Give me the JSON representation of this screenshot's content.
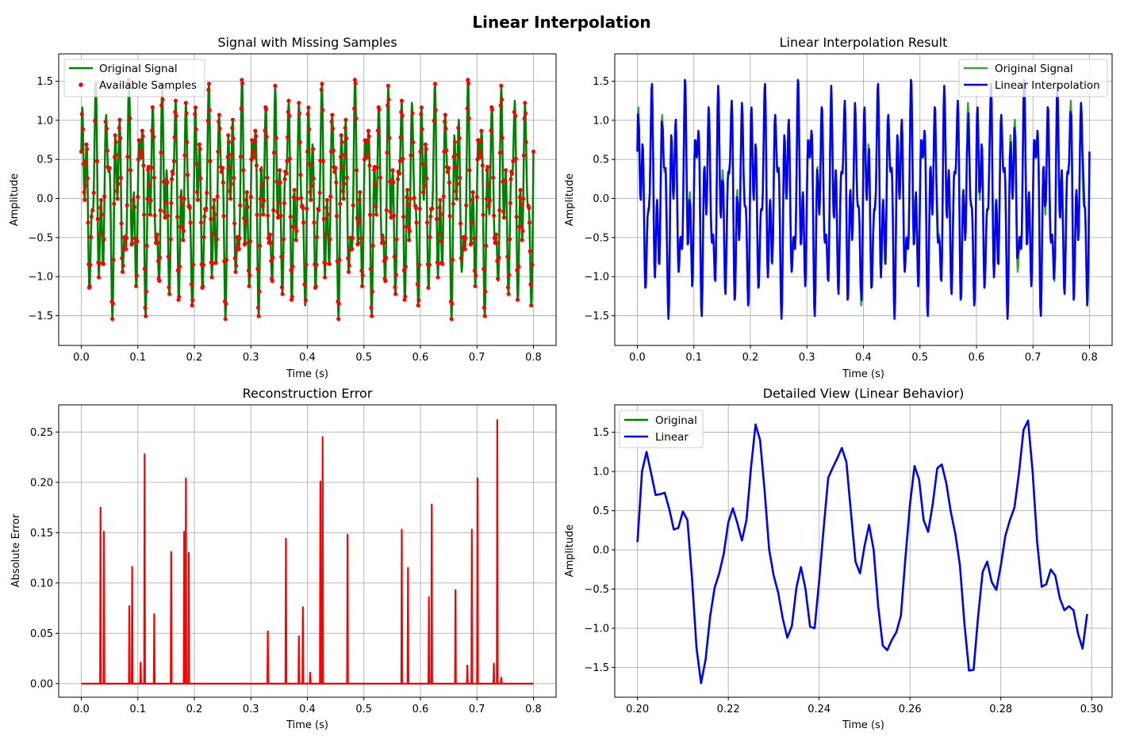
{
  "figure": {
    "suptitle": "Linear Interpolation"
  },
  "colors": {
    "green": "#008000",
    "blue": "#0000ff",
    "red": "#ff0000",
    "green_light": "#3fa03f"
  },
  "chart_data": [
    {
      "id": "p1",
      "type": "line",
      "title": "Signal with Missing Samples",
      "xlabel": "Time (s)",
      "ylabel": "Amplitude",
      "xlim": [
        -0.04,
        0.84
      ],
      "ylim": [
        -1.88,
        1.85
      ],
      "xticks": [
        0.0,
        0.1,
        0.2,
        0.3,
        0.4,
        0.5,
        0.6,
        0.7,
        0.8
      ],
      "xtick_labels": [
        "0.0",
        "0.1",
        "0.2",
        "0.3",
        "0.4",
        "0.5",
        "0.6",
        "0.7",
        "0.8"
      ],
      "yticks": [
        -1.5,
        -1.0,
        -0.5,
        0.0,
        0.5,
        1.0,
        1.5
      ],
      "ytick_labels": [
        "−1.5",
        "−1.0",
        "−0.5",
        "0.0",
        "0.5",
        "1.0",
        "1.5"
      ],
      "grid": true,
      "legend": {
        "position": "upper left",
        "entries": [
          "Original Signal",
          "Available Samples"
        ]
      },
      "series": [
        {
          "name": "Original Signal",
          "style": "line",
          "color": "#008000",
          "source": "signal",
          "x_range": [
            0,
            0.8
          ],
          "n": 800
        },
        {
          "name": "Available Samples",
          "style": "dots",
          "color": "#ff0000",
          "source": "samples",
          "x_range": [
            0,
            0.8
          ]
        }
      ]
    },
    {
      "id": "p2",
      "type": "line",
      "title": "Linear Interpolation Result",
      "xlabel": "Time (s)",
      "ylabel": "Amplitude",
      "xlim": [
        -0.04,
        0.84
      ],
      "ylim": [
        -1.88,
        1.85
      ],
      "xticks": [
        0.0,
        0.1,
        0.2,
        0.3,
        0.4,
        0.5,
        0.6,
        0.7,
        0.8
      ],
      "xtick_labels": [
        "0.0",
        "0.1",
        "0.2",
        "0.3",
        "0.4",
        "0.5",
        "0.6",
        "0.7",
        "0.8"
      ],
      "yticks": [
        -1.5,
        -1.0,
        -0.5,
        0.0,
        0.5,
        1.0,
        1.5
      ],
      "ytick_labels": [
        "−1.5",
        "−1.0",
        "−0.5",
        "0.0",
        "0.5",
        "1.0",
        "1.5"
      ],
      "grid": true,
      "legend": {
        "position": "upper right",
        "entries": [
          "Original Signal",
          "Linear Interpolation"
        ]
      },
      "series": [
        {
          "name": "Original Signal",
          "style": "line",
          "color": "#3fa03f",
          "source": "signal",
          "x_range": [
            0,
            0.8
          ],
          "n": 800
        },
        {
          "name": "Linear Interpolation",
          "style": "line",
          "color": "#0000ff",
          "source": "interp",
          "x_range": [
            0,
            0.8
          ]
        }
      ]
    },
    {
      "id": "p3",
      "type": "line",
      "title": "Reconstruction Error",
      "xlabel": "Time (s)",
      "ylabel": "Absolute Error",
      "xlim": [
        -0.04,
        0.84
      ],
      "ylim": [
        -0.0135,
        0.277
      ],
      "xticks": [
        0.0,
        0.1,
        0.2,
        0.3,
        0.4,
        0.5,
        0.6,
        0.7,
        0.8
      ],
      "xtick_labels": [
        "0.0",
        "0.1",
        "0.2",
        "0.3",
        "0.4",
        "0.5",
        "0.6",
        "0.7",
        "0.8"
      ],
      "yticks": [
        0.0,
        0.05,
        0.1,
        0.15,
        0.2,
        0.25
      ],
      "ytick_labels": [
        "0.00",
        "0.05",
        "0.10",
        "0.15",
        "0.20",
        "0.25"
      ],
      "grid": true,
      "legend": null,
      "series": [
        {
          "name": "",
          "style": "spikes",
          "color": "#ff0000",
          "baseline": 0.0,
          "x_range": [
            0,
            0.8
          ],
          "spikes": [
            [
              0.034,
              0.175
            ],
            [
              0.04,
              0.151
            ],
            [
              0.085,
              0.077
            ],
            [
              0.09,
              0.116
            ],
            [
              0.105,
              0.021
            ],
            [
              0.112,
              0.228
            ],
            [
              0.129,
              0.069
            ],
            [
              0.159,
              0.131
            ],
            [
              0.182,
              0.151
            ],
            [
              0.185,
              0.204
            ],
            [
              0.19,
              0.13
            ],
            [
              0.33,
              0.052
            ],
            [
              0.362,
              0.144
            ],
            [
              0.385,
              0.047
            ],
            [
              0.392,
              0.076
            ],
            [
              0.405,
              0.011
            ],
            [
              0.423,
              0.201
            ],
            [
              0.427,
              0.245
            ],
            [
              0.471,
              0.148
            ],
            [
              0.567,
              0.153
            ],
            [
              0.578,
              0.115
            ],
            [
              0.615,
              0.086
            ],
            [
              0.62,
              0.178
            ],
            [
              0.662,
              0.093
            ],
            [
              0.683,
              0.018
            ],
            [
              0.691,
              0.153
            ],
            [
              0.701,
              0.204
            ],
            [
              0.73,
              0.02
            ],
            [
              0.736,
              0.262
            ],
            [
              0.743,
              0.006
            ]
          ]
        }
      ]
    },
    {
      "id": "p4",
      "type": "line",
      "title": "Detailed View (Linear Behavior)",
      "xlabel": "Time (s)",
      "ylabel": "Amplitude",
      "xlim": [
        0.195,
        0.3045
      ],
      "ylim": [
        -1.88,
        1.85
      ],
      "xticks": [
        0.2,
        0.22,
        0.24,
        0.26,
        0.28,
        0.3
      ],
      "xtick_labels": [
        "0.20",
        "0.22",
        "0.24",
        "0.26",
        "0.28",
        "0.30"
      ],
      "yticks": [
        -1.5,
        -1.0,
        -0.5,
        0.0,
        0.5,
        1.0,
        1.5
      ],
      "ytick_labels": [
        "−1.5",
        "−1.0",
        "−0.5",
        "0.0",
        "0.5",
        "1.0",
        "1.5"
      ],
      "grid": true,
      "legend": {
        "position": "upper left",
        "entries": [
          "Original",
          "Linear"
        ]
      },
      "series": [
        {
          "name": "Original",
          "style": "line",
          "color": "#008000",
          "x": [
            0.2,
            0.201,
            0.202,
            0.203,
            0.204,
            0.205,
            0.206,
            0.207,
            0.208,
            0.209,
            0.21,
            0.211,
            0.212,
            0.213,
            0.214,
            0.215,
            0.216,
            0.217,
            0.218,
            0.219,
            0.22,
            0.221,
            0.222,
            0.223,
            0.224,
            0.225,
            0.226,
            0.227,
            0.228,
            0.229,
            0.23,
            0.231,
            0.232,
            0.233,
            0.234,
            0.235,
            0.236,
            0.237,
            0.238,
            0.239,
            0.24,
            0.241,
            0.242,
            0.243,
            0.244,
            0.245,
            0.246,
            0.247,
            0.248,
            0.249,
            0.25,
            0.251,
            0.252,
            0.253,
            0.254,
            0.255,
            0.256,
            0.257,
            0.258,
            0.259,
            0.26,
            0.261,
            0.262,
            0.263,
            0.264,
            0.265,
            0.266,
            0.267,
            0.268,
            0.269,
            0.27,
            0.271,
            0.272,
            0.273,
            0.274,
            0.275,
            0.276,
            0.277,
            0.278,
            0.279,
            0.28,
            0.281,
            0.282,
            0.283,
            0.284,
            0.285,
            0.286,
            0.287,
            0.288,
            0.289,
            0.29,
            0.291,
            0.292,
            0.293,
            0.294,
            0.295,
            0.296,
            0.297,
            0.298,
            0.299
          ],
          "y": [
            0.1,
            1.0,
            1.25,
            0.98,
            0.7,
            0.71,
            0.73,
            0.52,
            0.26,
            0.28,
            0.49,
            0.38,
            -0.35,
            -1.25,
            -1.7,
            -1.4,
            -0.85,
            -0.48,
            -0.3,
            -0.05,
            0.35,
            0.53,
            0.34,
            0.12,
            0.38,
            1.05,
            1.6,
            1.4,
            0.75,
            0.0,
            -0.33,
            -0.55,
            -0.88,
            -1.12,
            -0.97,
            -0.48,
            -0.22,
            -0.5,
            -0.98,
            -1.0,
            -0.4,
            0.28,
            0.92,
            1.05,
            1.17,
            1.3,
            1.12,
            0.48,
            -0.15,
            -0.3,
            0.05,
            0.32,
            0.0,
            -0.72,
            -1.22,
            -1.28,
            -1.15,
            -1.05,
            -0.84,
            -0.1,
            0.58,
            1.07,
            0.9,
            0.38,
            0.23,
            0.58,
            1.04,
            1.09,
            0.85,
            0.48,
            0.2,
            -0.2,
            -0.95,
            -1.54,
            -1.53,
            -0.85,
            -0.28,
            -0.15,
            -0.41,
            -0.51,
            -0.2,
            0.18,
            0.38,
            0.54,
            0.98,
            1.53,
            1.65,
            1.0,
            0.1,
            -0.47,
            -0.44,
            -0.25,
            -0.33,
            -0.62,
            -0.77,
            -0.72,
            -0.77,
            -1.07,
            -1.26,
            -0.82
          ]
        },
        {
          "name": "Linear",
          "style": "line",
          "color": "#0000ff",
          "x": [
            0.2,
            0.201,
            0.202,
            0.203,
            0.204,
            0.205,
            0.206,
            0.207,
            0.208,
            0.209,
            0.21,
            0.211,
            0.212,
            0.213,
            0.214,
            0.215,
            0.216,
            0.217,
            0.218,
            0.219,
            0.22,
            0.221,
            0.222,
            0.223,
            0.224,
            0.225,
            0.226,
            0.227,
            0.228,
            0.229,
            0.23,
            0.231,
            0.232,
            0.233,
            0.234,
            0.235,
            0.236,
            0.237,
            0.238,
            0.239,
            0.24,
            0.241,
            0.242,
            0.243,
            0.244,
            0.245,
            0.246,
            0.247,
            0.248,
            0.249,
            0.25,
            0.251,
            0.252,
            0.253,
            0.254,
            0.255,
            0.256,
            0.257,
            0.258,
            0.259,
            0.26,
            0.261,
            0.262,
            0.263,
            0.264,
            0.265,
            0.266,
            0.267,
            0.268,
            0.269,
            0.27,
            0.271,
            0.272,
            0.273,
            0.274,
            0.275,
            0.276,
            0.277,
            0.278,
            0.279,
            0.28,
            0.281,
            0.282,
            0.283,
            0.284,
            0.285,
            0.286,
            0.287,
            0.288,
            0.289,
            0.29,
            0.291,
            0.292,
            0.293,
            0.294,
            0.295,
            0.296,
            0.297,
            0.298,
            0.299
          ],
          "y": [
            0.1,
            1.0,
            1.25,
            0.98,
            0.7,
            0.71,
            0.73,
            0.52,
            0.26,
            0.28,
            0.49,
            0.38,
            -0.35,
            -1.25,
            -1.7,
            -1.4,
            -0.85,
            -0.48,
            -0.3,
            -0.05,
            0.35,
            0.53,
            0.34,
            0.12,
            0.38,
            1.05,
            1.6,
            1.4,
            0.75,
            0.0,
            -0.33,
            -0.55,
            -0.88,
            -1.12,
            -0.97,
            -0.48,
            -0.22,
            -0.5,
            -0.98,
            -1.0,
            -0.4,
            0.28,
            0.92,
            1.05,
            1.17,
            1.3,
            1.12,
            0.48,
            -0.15,
            -0.3,
            0.05,
            0.32,
            0.0,
            -0.72,
            -1.22,
            -1.28,
            -1.15,
            -1.05,
            -0.84,
            -0.1,
            0.58,
            1.07,
            0.9,
            0.38,
            0.23,
            0.58,
            1.04,
            1.09,
            0.85,
            0.48,
            0.2,
            -0.2,
            -0.95,
            -1.54,
            -1.53,
            -0.85,
            -0.28,
            -0.15,
            -0.41,
            -0.51,
            -0.2,
            0.18,
            0.38,
            0.54,
            0.98,
            1.53,
            1.65,
            1.0,
            0.1,
            -0.47,
            -0.44,
            -0.25,
            -0.33,
            -0.62,
            -0.77,
            -0.72,
            -0.77,
            -1.07,
            -1.26,
            -0.82
          ]
        }
      ]
    }
  ]
}
